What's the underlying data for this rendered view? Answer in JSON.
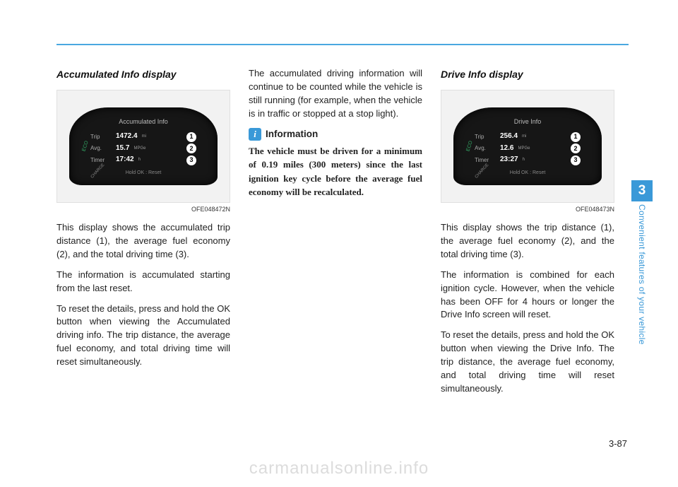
{
  "section1": {
    "heading": "Accumulated Info display",
    "caption": "OFE048472N",
    "p1": "This display shows the accumulated trip distance (1), the average fuel economy (2), and the total driving time (3).",
    "p2": "The information is accumulated starting from the last reset.",
    "p3": "To reset the details, press and hold the OK button when viewing the Accumulated driving info. The trip distance, the average fuel economy, and total driving time will reset simultaneously."
  },
  "section2": {
    "p1": "The accumulated driving information will continue to be counted while the vehicle is still running (for example, when the vehicle is in traffic or stopped at a stop light).",
    "info_label": "Information",
    "info_text": "The vehicle must be driven for a minimum of 0.19 miles (300 meters) since the last ignition key cycle before the average fuel economy will be recalculated."
  },
  "section3": {
    "heading": "Drive Info display",
    "caption": "OFE048473N",
    "p1": "This display shows the trip distance (1), the average fuel economy (2), and the total driving time (3).",
    "p2": "The information is combined for each ignition cycle. However, when the vehicle has been OFF for 4 hours or longer the Drive Info screen will reset.",
    "p3": "To reset the details, press and hold the OK button when viewing the Drive Info. The trip distance, the average fuel economy, and total driving time will reset simultaneously."
  },
  "cluster1": {
    "title": "Accumulated Info",
    "trip_label": "Trip",
    "trip_val": "1472.4",
    "trip_unit": "mi",
    "avg_label": "Avg.",
    "avg_val": "15.7",
    "avg_unit": "MPGe",
    "timer_label": "Timer",
    "timer_val": "17:42",
    "timer_unit": "h",
    "hold": "Hold  OK  : Reset",
    "eco": "ECO",
    "chg": "CHARGE"
  },
  "cluster2": {
    "title": "Drive Info",
    "trip_label": "Trip",
    "trip_val": "256.4",
    "trip_unit": "mi",
    "avg_label": "Avg.",
    "avg_val": "12.6",
    "avg_unit": "MPGe",
    "timer_label": "Timer",
    "timer_val": "23:27",
    "timer_unit": "h",
    "hold": "Hold  OK  : Reset",
    "eco": "ECO",
    "chg": "CHARGE"
  },
  "sidebar": {
    "chapter": "3",
    "label": "Convenient features of your vehicle"
  },
  "pagenum": "3-87",
  "watermark": "carmanualsonline.info",
  "badges": {
    "b1": "1",
    "b2": "2",
    "b3": "3"
  },
  "info_icon": "i"
}
